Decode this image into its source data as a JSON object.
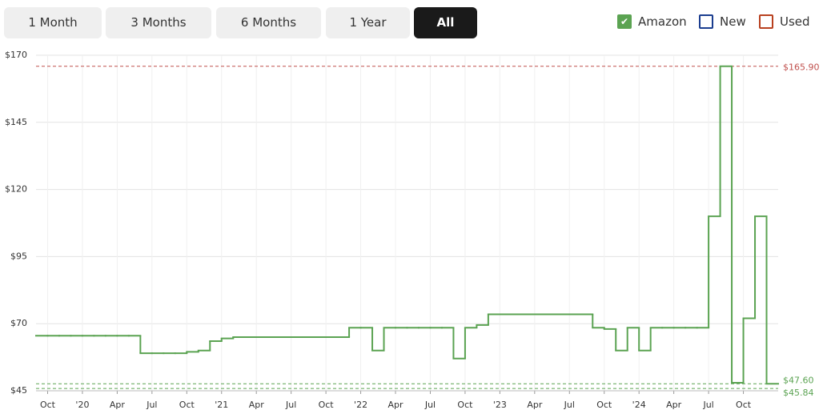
{
  "range_buttons": {
    "options": [
      "1 Month",
      "3 Months",
      "6 Months",
      "1 Year",
      "All"
    ],
    "selected_index": 4
  },
  "chart_data": {
    "type": "step",
    "x": [
      "2019-09",
      "2019-10",
      "2019-11",
      "2019-12",
      "2020-01",
      "2020-02",
      "2020-03",
      "2020-04",
      "2020-05",
      "2020-06",
      "2020-07",
      "2020-08",
      "2020-09",
      "2020-10",
      "2020-11",
      "2020-12",
      "2021-01",
      "2021-02",
      "2021-03",
      "2021-04",
      "2021-05",
      "2021-06",
      "2021-07",
      "2021-08",
      "2021-09",
      "2021-10",
      "2021-11",
      "2021-12",
      "2022-01",
      "2022-02",
      "2022-03",
      "2022-04",
      "2022-05",
      "2022-06",
      "2022-07",
      "2022-08",
      "2022-09",
      "2022-10",
      "2022-11",
      "2022-12",
      "2023-01",
      "2023-02",
      "2023-03",
      "2023-04",
      "2023-05",
      "2023-06",
      "2023-07",
      "2023-08",
      "2023-09",
      "2023-10",
      "2023-11",
      "2023-12",
      "2024-01",
      "2024-02",
      "2024-03",
      "2024-04",
      "2024-05",
      "2024-06",
      "2024-07",
      "2024-08",
      "2024-09",
      "2024-10",
      "2024-11",
      "2024-12"
    ],
    "series": [
      {
        "name": "Amazon",
        "color": "#5ba352",
        "checked": true,
        "values": [
          65.5,
          65.5,
          65.5,
          65.5,
          65.5,
          65.5,
          65.5,
          65.5,
          65.5,
          59,
          59,
          59,
          59,
          59.5,
          60,
          63.5,
          64.5,
          65,
          65,
          65,
          65,
          65,
          65,
          65,
          65,
          65,
          65,
          68.5,
          68.5,
          60,
          68.5,
          68.5,
          68.5,
          68.5,
          68.5,
          68.5,
          57,
          68.5,
          69.5,
          73.5,
          73.5,
          73.5,
          73.5,
          73.5,
          73.5,
          73.5,
          73.5,
          73.5,
          68.5,
          68,
          60,
          68.5,
          60,
          68.5,
          68.5,
          68.5,
          68.5,
          68.5,
          110,
          165.9,
          48,
          72,
          110,
          47.6
        ]
      },
      {
        "name": "New",
        "color": "#1a3d8f",
        "checked": false,
        "values": [
          null,
          null,
          null,
          null,
          null,
          null,
          null,
          null,
          null,
          null,
          null,
          null,
          null,
          null,
          null,
          null,
          null,
          null,
          null,
          null,
          null,
          null,
          null,
          null,
          null,
          null,
          null,
          null,
          null,
          null,
          null,
          null,
          null,
          null,
          null,
          null,
          null,
          null,
          null,
          null,
          null,
          null,
          null,
          null,
          null,
          null,
          null,
          null,
          null,
          null,
          null,
          null,
          null,
          null,
          null,
          null,
          null,
          null,
          null,
          null,
          null,
          null,
          null,
          null
        ]
      },
      {
        "name": "Used",
        "color": "#b8401f",
        "checked": false,
        "values": [
          null,
          null,
          null,
          null,
          null,
          null,
          null,
          null,
          null,
          null,
          null,
          null,
          null,
          null,
          null,
          null,
          null,
          null,
          null,
          null,
          null,
          null,
          null,
          null,
          null,
          null,
          null,
          null,
          null,
          null,
          null,
          null,
          null,
          null,
          null,
          null,
          null,
          null,
          null,
          null,
          null,
          null,
          null,
          null,
          null,
          null,
          null,
          null,
          null,
          null,
          null,
          null,
          null,
          null,
          null,
          null,
          null,
          null,
          null,
          null,
          null,
          null,
          null,
          null
        ]
      }
    ],
    "reference_lines": [
      {
        "value": 165.9,
        "label": "$165.90",
        "color": "#c0504d"
      },
      {
        "value": 47.6,
        "label": "$47.60",
        "color": "#5ba352"
      },
      {
        "value": 45.84,
        "label": "$45.84",
        "color": "#5ba352"
      }
    ],
    "xlim": [
      "2019-09",
      "2025-01"
    ],
    "xticks": [
      {
        "value": "2019-10",
        "label": "Oct"
      },
      {
        "value": "2020-01",
        "label": "'20"
      },
      {
        "value": "2020-04",
        "label": "Apr"
      },
      {
        "value": "2020-07",
        "label": "Jul"
      },
      {
        "value": "2020-10",
        "label": "Oct"
      },
      {
        "value": "2021-01",
        "label": "'21"
      },
      {
        "value": "2021-04",
        "label": "Apr"
      },
      {
        "value": "2021-07",
        "label": "Jul"
      },
      {
        "value": "2021-10",
        "label": "Oct"
      },
      {
        "value": "2022-01",
        "label": "'22"
      },
      {
        "value": "2022-04",
        "label": "Apr"
      },
      {
        "value": "2022-07",
        "label": "Jul"
      },
      {
        "value": "2022-10",
        "label": "Oct"
      },
      {
        "value": "2023-01",
        "label": "'23"
      },
      {
        "value": "2023-04",
        "label": "Apr"
      },
      {
        "value": "2023-07",
        "label": "Jul"
      },
      {
        "value": "2023-10",
        "label": "Oct"
      },
      {
        "value": "2024-01",
        "label": "'24"
      },
      {
        "value": "2024-04",
        "label": "Apr"
      },
      {
        "value": "2024-07",
        "label": "Jul"
      },
      {
        "value": "2024-10",
        "label": "Oct"
      }
    ],
    "ylim": [
      45,
      170
    ],
    "yticks": [
      {
        "value": 45,
        "label": "$45"
      },
      {
        "value": 70,
        "label": "$70"
      },
      {
        "value": 95,
        "label": "$95"
      },
      {
        "value": 120,
        "label": "$120"
      },
      {
        "value": 145,
        "label": "$145"
      },
      {
        "value": 170,
        "label": "$170"
      }
    ],
    "grid": true
  }
}
